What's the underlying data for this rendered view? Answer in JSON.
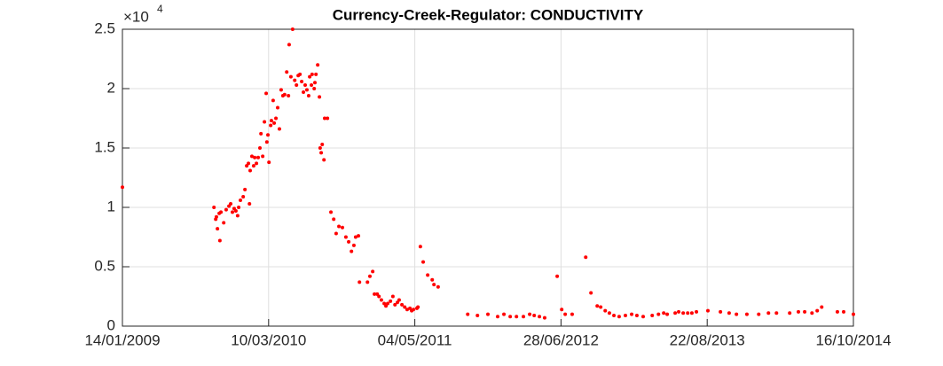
{
  "chart_data": {
    "type": "scatter",
    "title": "Currency-Creek-Regulator: CONDUCTIVITY",
    "y_exponent_base": "×10",
    "y_exponent": "4",
    "xlim": [
      733787,
      735887
    ],
    "xticks": [
      {
        "value": 733787,
        "label": "14/01/2009"
      },
      {
        "value": 734207,
        "label": "10/03/2010"
      },
      {
        "value": 734627,
        "label": "04/05/2011"
      },
      {
        "value": 735047,
        "label": "28/06/2012"
      },
      {
        "value": 735467,
        "label": "22/08/2013"
      },
      {
        "value": 735887,
        "label": "16/10/2014"
      }
    ],
    "ylim": [
      0,
      2.5
    ],
    "yticks": [
      0,
      0.5,
      1,
      1.5,
      2,
      2.5
    ],
    "grid": true,
    "series": [
      {
        "color": "#ff0000",
        "x": [
          733787,
          734050,
          734055,
          734057,
          734060,
          734065,
          734067,
          734070,
          734078,
          734085,
          734093,
          734098,
          734103,
          734108,
          734113,
          734118,
          734121,
          734126,
          734134,
          734139,
          734144,
          734149,
          734152,
          734154,
          734159,
          734164,
          734167,
          734172,
          734177,
          734182,
          734185,
          734190,
          734195,
          734200,
          734202,
          734205,
          734208,
          734213,
          734215,
          734220,
          734223,
          734228,
          734233,
          734238,
          734243,
          734248,
          734253,
          734259,
          734264,
          734266,
          734271,
          734276,
          734282,
          734287,
          734292,
          734297,
          734302,
          734307,
          734312,
          734317,
          734322,
          734325,
          734330,
          734332,
          734338,
          734340,
          734343,
          734348,
          734353,
          734355,
          734358,
          734361,
          734366,
          734368,
          734376,
          734386,
          734394,
          734401,
          734409,
          734419,
          734429,
          734437,
          734445,
          734452,
          734457,
          734465,
          734468,
          734491,
          734498,
          734506,
          734511,
          734519,
          734524,
          734531,
          734539,
          734544,
          734549,
          734557,
          734564,
          734570,
          734577,
          734582,
          734590,
          734598,
          734605,
          734613,
          734618,
          734623,
          734633,
          734636,
          734643,
          734651,
          734664,
          734677,
          734682,
          734694,
          734779,
          734807,
          734837,
          734865,
          734883,
          734901,
          734919,
          734939,
          734957,
          734970,
          734985,
          735000,
          735036,
          735049,
          735059,
          735079,
          735118,
          735133,
          735151,
          735161,
          735174,
          735186,
          735199,
          735214,
          735232,
          735250,
          735265,
          735283,
          735309,
          735327,
          735342,
          735352,
          735375,
          735385,
          735398,
          735411,
          735423,
          735436,
          735469,
          735505,
          735530,
          735551,
          735581,
          735615,
          735643,
          735666,
          735704,
          735729,
          735747,
          735768,
          735783,
          735796,
          735841,
          735859,
          735887
        ],
        "values": [
          1.17,
          1.0,
          0.9,
          0.92,
          0.82,
          0.95,
          0.72,
          0.96,
          0.87,
          0.98,
          1.01,
          1.03,
          0.96,
          0.99,
          0.97,
          0.93,
          1.0,
          1.06,
          1.09,
          1.15,
          1.35,
          1.37,
          1.03,
          1.31,
          1.43,
          1.35,
          1.42,
          1.37,
          1.42,
          1.5,
          1.62,
          1.43,
          1.72,
          1.96,
          1.55,
          1.61,
          1.38,
          1.69,
          1.73,
          1.9,
          1.71,
          1.75,
          1.84,
          1.66,
          1.99,
          1.94,
          1.95,
          2.14,
          1.94,
          2.37,
          2.1,
          2.5,
          2.07,
          2.03,
          2.11,
          2.12,
          2.06,
          1.97,
          2.03,
          1.99,
          1.94,
          2.1,
          2.03,
          2.12,
          2.0,
          2.05,
          2.12,
          2.2,
          1.93,
          1.5,
          1.46,
          1.53,
          1.4,
          1.75,
          1.75,
          0.96,
          0.9,
          0.78,
          0.84,
          0.83,
          0.75,
          0.71,
          0.63,
          0.68,
          0.75,
          0.76,
          0.37,
          0.37,
          0.42,
          0.46,
          0.27,
          0.27,
          0.25,
          0.22,
          0.19,
          0.17,
          0.19,
          0.21,
          0.25,
          0.18,
          0.2,
          0.22,
          0.18,
          0.16,
          0.14,
          0.15,
          0.13,
          0.14,
          0.15,
          0.16,
          0.67,
          0.54,
          0.43,
          0.39,
          0.35,
          0.33,
          0.1,
          0.09,
          0.1,
          0.08,
          0.1,
          0.08,
          0.08,
          0.08,
          0.1,
          0.09,
          0.08,
          0.07,
          0.42,
          0.14,
          0.1,
          0.1,
          0.58,
          0.28,
          0.17,
          0.16,
          0.13,
          0.11,
          0.09,
          0.08,
          0.09,
          0.1,
          0.09,
          0.08,
          0.09,
          0.1,
          0.11,
          0.1,
          0.11,
          0.12,
          0.11,
          0.11,
          0.11,
          0.12,
          0.13,
          0.12,
          0.11,
          0.1,
          0.1,
          0.1,
          0.11,
          0.11,
          0.11,
          0.12,
          0.12,
          0.11,
          0.13,
          0.16,
          0.12,
          0.12,
          0.1
        ]
      }
    ]
  }
}
